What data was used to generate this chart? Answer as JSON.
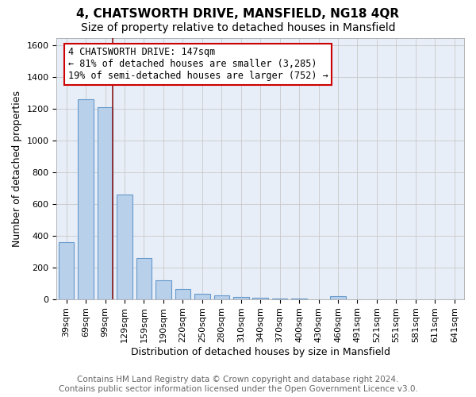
{
  "title": "4, CHATSWORTH DRIVE, MANSFIELD, NG18 4QR",
  "subtitle": "Size of property relative to detached houses in Mansfield",
  "xlabel": "Distribution of detached houses by size in Mansfield",
  "ylabel": "Number of detached properties",
  "categories": [
    "39sqm",
    "69sqm",
    "99sqm",
    "129sqm",
    "159sqm",
    "190sqm",
    "220sqm",
    "250sqm",
    "280sqm",
    "310sqm",
    "340sqm",
    "370sqm",
    "400sqm",
    "430sqm",
    "460sqm",
    "491sqm",
    "521sqm",
    "551sqm",
    "581sqm",
    "611sqm",
    "641sqm"
  ],
  "values": [
    360,
    1260,
    1210,
    660,
    260,
    120,
    65,
    35,
    22,
    15,
    10,
    5,
    2,
    1,
    20,
    0,
    0,
    0,
    0,
    0,
    0
  ],
  "bar_color": "#b8d0ea",
  "bar_edge_color": "#6699cc",
  "background_color": "#e8eef8",
  "grid_color": "#c8c8c8",
  "ylim": [
    0,
    1650
  ],
  "yticks": [
    0,
    200,
    400,
    600,
    800,
    1000,
    1200,
    1400,
    1600
  ],
  "annotation_line1": "4 CHATSWORTH DRIVE: 147sqm",
  "annotation_line2": "← 81% of detached houses are smaller (3,285)",
  "annotation_line3": "19% of semi-detached houses are larger (752) →",
  "vline_color": "#8b1a1a",
  "vline_x": 2.4,
  "footer": "Contains HM Land Registry data © Crown copyright and database right 2024.\nContains public sector information licensed under the Open Government Licence v3.0.",
  "title_fontsize": 11,
  "subtitle_fontsize": 10,
  "axis_label_fontsize": 9,
  "tick_fontsize": 8,
  "annotation_fontsize": 8.5,
  "footer_fontsize": 7.5
}
